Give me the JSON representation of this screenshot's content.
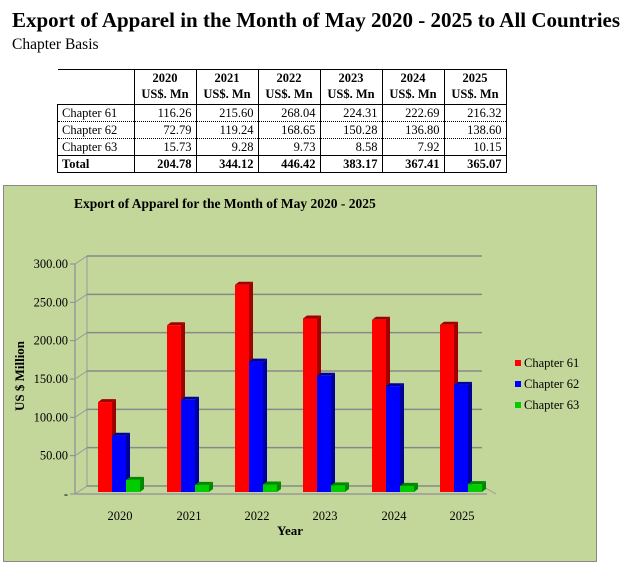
{
  "header": {
    "title": "Export of Apparel in the Month of May 2020 - 2025 to All Countries",
    "subtitle": "Chapter Basis"
  },
  "table": {
    "years": [
      "2020",
      "2021",
      "2022",
      "2023",
      "2024",
      "2025"
    ],
    "unit": "US$. Mn",
    "rows": [
      {
        "label": "Chapter 61",
        "values": [
          "116.26",
          "215.60",
          "268.04",
          "224.31",
          "222.69",
          "216.32"
        ]
      },
      {
        "label": "Chapter 62",
        "values": [
          "72.79",
          "119.24",
          "168.65",
          "150.28",
          "136.80",
          "138.60"
        ]
      },
      {
        "label": "Chapter 63",
        "values": [
          "15.73",
          "9.28",
          "9.73",
          "8.58",
          "7.92",
          "10.15"
        ]
      },
      {
        "label": "Total",
        "values": [
          "204.78",
          "344.12",
          "446.42",
          "383.17",
          "367.41",
          "365.07"
        ]
      }
    ]
  },
  "chart_data": {
    "type": "bar",
    "title": "Export of Apparel for the Month of May 2020 - 2025",
    "xlabel": "Year",
    "ylabel": "US $ Million",
    "categories": [
      "2020",
      "2021",
      "2022",
      "2023",
      "2024",
      "2025"
    ],
    "ylim": [
      0,
      300
    ],
    "yticks": [
      "-",
      "50.00",
      "100.00",
      "150.00",
      "200.00",
      "250.00",
      "300.00"
    ],
    "legend_position": "right",
    "series": [
      {
        "name": "Chapter 61",
        "color": "#ff0000",
        "side": "#a00000",
        "values": [
          116.26,
          215.6,
          268.04,
          224.31,
          222.69,
          216.32
        ]
      },
      {
        "name": "Chapter 62",
        "color": "#0000ff",
        "side": "#00009a",
        "values": [
          72.79,
          119.24,
          168.65,
          150.28,
          136.8,
          138.6
        ]
      },
      {
        "name": "Chapter 63",
        "color": "#00cc00",
        "side": "#008800",
        "values": [
          15.73,
          9.28,
          9.73,
          8.58,
          7.92,
          10.15
        ]
      }
    ]
  }
}
